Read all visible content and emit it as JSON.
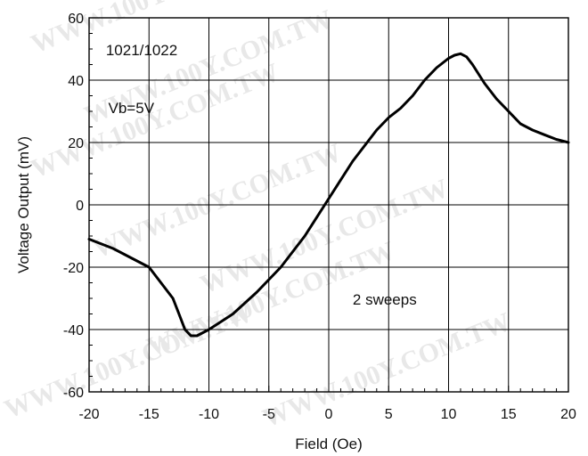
{
  "chart_data": {
    "type": "line",
    "title": "",
    "xlabel": "Field (Oe)",
    "ylabel": "Voltage Output (mV)",
    "xlim": [
      -20,
      20
    ],
    "ylim": [
      -60,
      60
    ],
    "x_ticks": [
      -20,
      -15,
      -10,
      -5,
      0,
      5,
      10,
      15,
      20
    ],
    "y_ticks": [
      -60,
      -40,
      -20,
      0,
      20,
      40,
      60
    ],
    "grid": true,
    "annotations": [
      "1021/1022",
      "Vb=5V",
      "2 sweeps"
    ],
    "series": [
      {
        "color": "#000000",
        "x": [
          -20,
          -18,
          -16,
          -15,
          -14,
          -13,
          -12.5,
          -12,
          -11.5,
          -11,
          -10.5,
          -10,
          -9,
          -8,
          -6,
          -4,
          -2,
          0,
          2,
          4,
          5,
          6,
          7,
          8,
          9,
          10,
          10.5,
          11,
          11.5,
          12,
          13,
          14,
          15,
          16,
          17,
          18,
          19,
          20
        ],
        "y": [
          -11,
          -14,
          -18,
          -20,
          -25,
          -30,
          -35,
          -40,
          -42,
          -42,
          -41,
          -40,
          -37.5,
          -35,
          -28,
          -20,
          -10,
          2,
          14,
          24,
          28,
          31,
          35,
          40,
          44,
          47,
          48,
          48.5,
          47.5,
          45,
          39,
          34,
          30,
          26,
          24,
          22.5,
          21,
          20
        ]
      }
    ]
  },
  "watermark": "WWW.100Y.COM.TW",
  "colors": {
    "line": "#000000",
    "grid": "#000000",
    "background": "#ffffff"
  }
}
